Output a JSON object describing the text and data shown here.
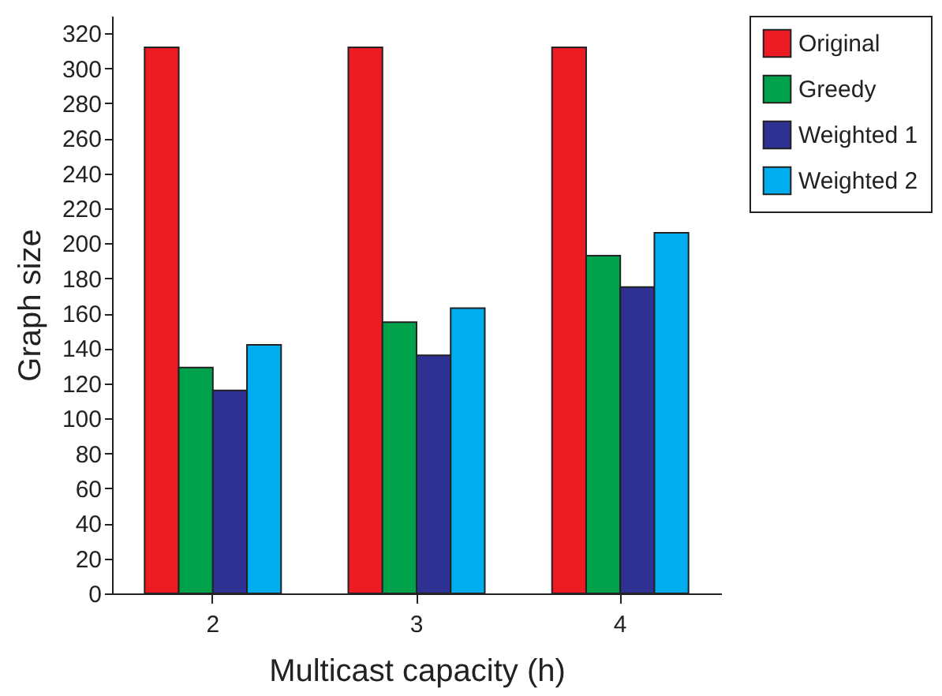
{
  "chart_data": {
    "type": "bar",
    "xlabel": "Multicast capacity (h)",
    "ylabel": "Graph size",
    "categories": [
      "2",
      "3",
      "4"
    ],
    "series": [
      {
        "name": "Original",
        "color": "#ed1c24",
        "values": [
          312,
          312,
          312
        ]
      },
      {
        "name": "Greedy",
        "color": "#00a14b",
        "values": [
          129,
          155,
          193
        ]
      },
      {
        "name": "Weighted 1",
        "color": "#2e3192",
        "values": [
          116,
          136,
          175
        ]
      },
      {
        "name": "Weighted 2",
        "color": "#00aeef",
        "values": [
          142,
          163,
          206
        ]
      }
    ],
    "ylim": [
      0,
      330
    ],
    "yticks": [
      0,
      20,
      40,
      60,
      80,
      100,
      120,
      140,
      160,
      180,
      200,
      220,
      240,
      260,
      280,
      300,
      320
    ],
    "legend": "right"
  }
}
